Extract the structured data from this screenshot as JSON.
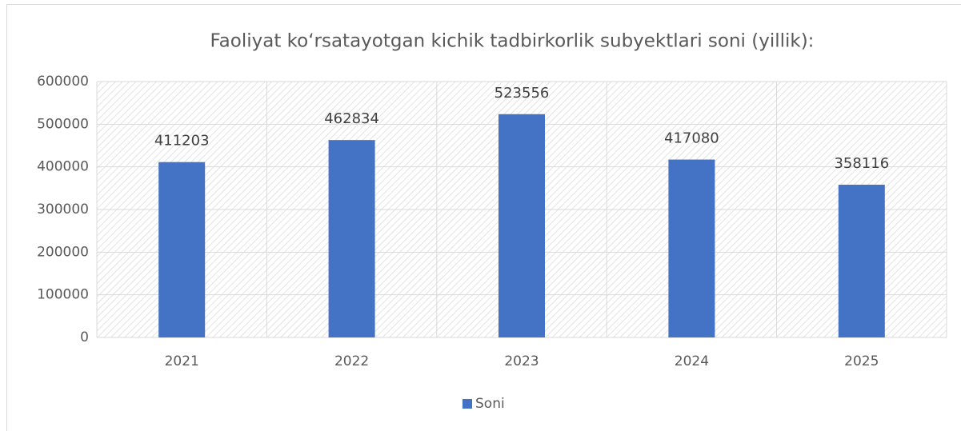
{
  "chart_data": {
    "type": "bar",
    "title": "Faoliyat ko‘rsatayotgan kichik tadbirkorlik subyektlari soni (yillik):",
    "categories": [
      "2021",
      "2022",
      "2023",
      "2024",
      "2025"
    ],
    "series": [
      {
        "name": "Soni",
        "color": "#4472c4",
        "values": [
          411203,
          462834,
          523556,
          417080,
          358116
        ]
      }
    ],
    "ylim": [
      0,
      600000
    ],
    "yticks": [
      0,
      100000,
      200000,
      300000,
      400000,
      500000,
      600000
    ],
    "grid": true,
    "legend": "bottom"
  }
}
